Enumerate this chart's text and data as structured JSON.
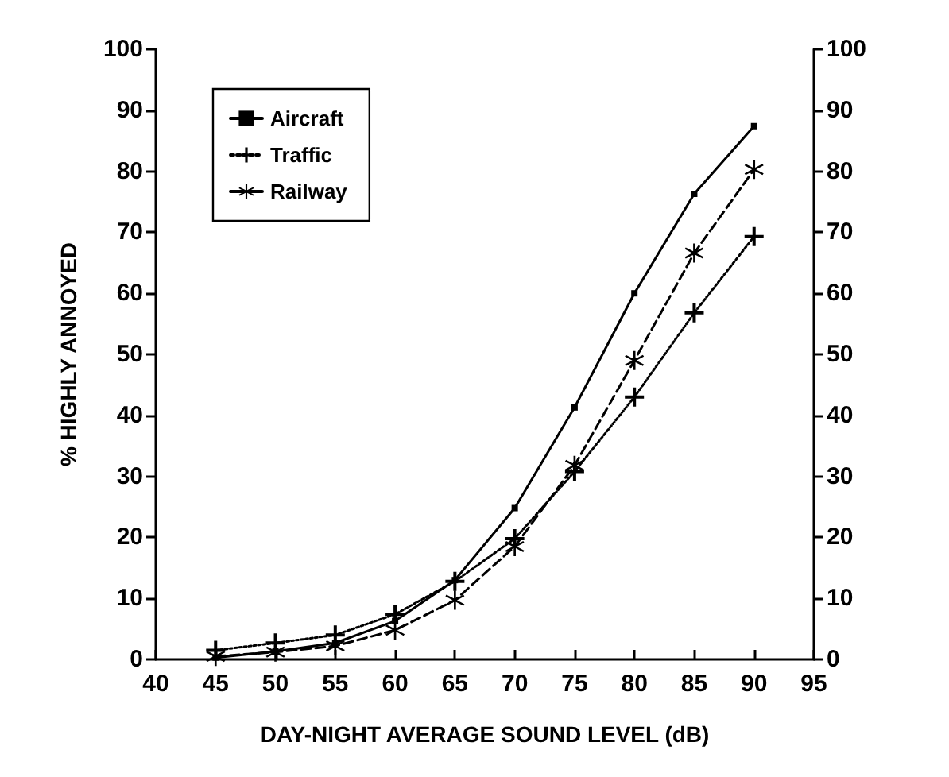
{
  "chart_data": {
    "type": "line",
    "xlabel": "DAY-NIGHT AVERAGE SOUND LEVEL (dB)",
    "ylabel": "% HIGHLY ANNOYED",
    "x": [
      45,
      50,
      55,
      60,
      65,
      70,
      75,
      80,
      85,
      90
    ],
    "series": [
      {
        "name": "Aircraft",
        "color": "#000000",
        "marker": "square",
        "line_style": "solid",
        "values": [
          0.3,
          1.3,
          2.7,
          6.3,
          13,
          24.8,
          41.3,
          60,
          76.3,
          87.4
        ]
      },
      {
        "name": "Traffic",
        "color": "#000000",
        "marker": "cross",
        "line_style": "dotted",
        "values": [
          1.5,
          2.7,
          4,
          7.4,
          12.8,
          19.8,
          30.8,
          43,
          56.8,
          69.3
        ]
      },
      {
        "name": "Railway",
        "color": "#000000",
        "marker": "star",
        "line_style": "dashed",
        "values": [
          0.5,
          1.2,
          2.2,
          4.8,
          9.7,
          18.5,
          31.8,
          49,
          66.6,
          80.3
        ]
      }
    ],
    "xlim": [
      40,
      95
    ],
    "xticks": [
      40,
      45,
      50,
      55,
      60,
      65,
      70,
      75,
      80,
      85,
      90,
      95
    ],
    "ylim": [
      0,
      100
    ],
    "yticks": [
      0,
      10,
      20,
      30,
      40,
      50,
      60,
      70,
      80,
      90,
      100
    ],
    "y2lim": [
      0,
      100
    ],
    "y2ticks": [
      0,
      10,
      20,
      30,
      40,
      50,
      60,
      70,
      80,
      90,
      100
    ],
    "grid": false,
    "legend": "top left"
  }
}
